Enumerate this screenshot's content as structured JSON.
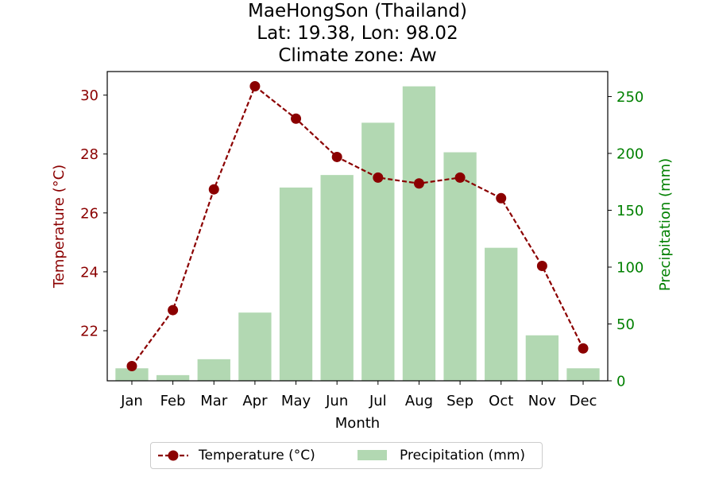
{
  "title": {
    "line1": "MaeHongSon (Thailand)",
    "line2": "Lat: 19.38, Lon: 98.02",
    "line3": "Climate zone: Aw"
  },
  "colors": {
    "temperature": "#8b0000",
    "precipitation_bar": "#b2d8b2",
    "precip_axis": "#008000"
  },
  "chart_data": {
    "type": "bar+line",
    "categories": [
      "Jan",
      "Feb",
      "Mar",
      "Apr",
      "May",
      "Jun",
      "Jul",
      "Aug",
      "Sep",
      "Oct",
      "Nov",
      "Dec"
    ],
    "xlabel": "Month",
    "series": [
      {
        "name": "Temperature (°C)",
        "type": "line",
        "axis": "left",
        "values": [
          20.8,
          22.7,
          26.8,
          30.3,
          29.2,
          27.9,
          27.2,
          27.0,
          27.2,
          26.5,
          24.2,
          21.4
        ]
      },
      {
        "name": "Precipitation (mm)",
        "type": "bar",
        "axis": "right",
        "values": [
          11,
          5,
          19,
          60,
          170,
          181,
          227,
          259,
          201,
          117,
          40,
          11
        ]
      }
    ],
    "y_left": {
      "label": "Temperature (°C)",
      "range": [
        20.3,
        30.8
      ],
      "ticks": [
        22,
        24,
        26,
        28,
        30
      ]
    },
    "y_right": {
      "label": "Precipitation (mm)",
      "range": [
        0,
        272
      ],
      "ticks": [
        0,
        50,
        100,
        150,
        200,
        250
      ]
    },
    "grid": false,
    "legend": "bottom-center"
  }
}
